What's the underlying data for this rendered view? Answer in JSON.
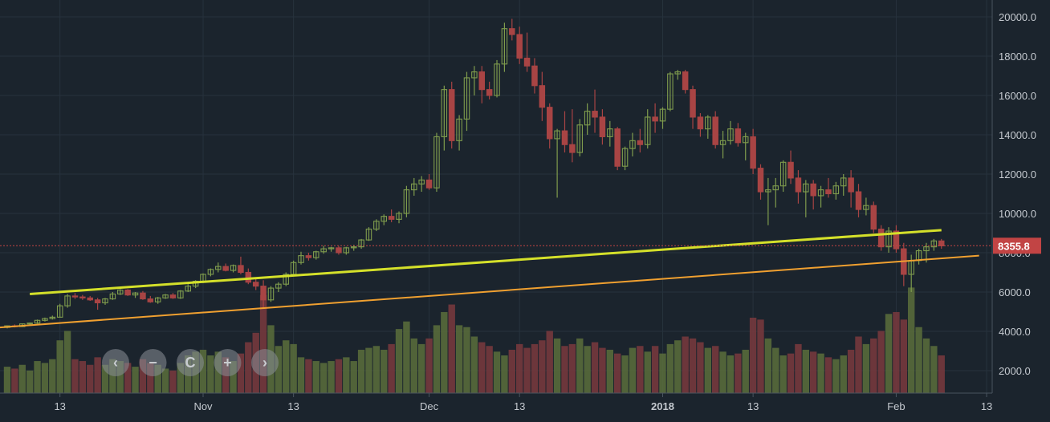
{
  "chart_data": {
    "type": "candlestick",
    "title": "",
    "xlabel": "",
    "ylabel": "",
    "ylim": [
      1000,
      20600
    ],
    "y_ticks": [
      2000,
      4000,
      6000,
      8000,
      10000,
      12000,
      14000,
      16000,
      18000,
      20000
    ],
    "y_tick_labels": [
      "2000.0",
      "4000.0",
      "6000.0",
      "8000.0",
      "10000.0",
      "12000.0",
      "14000.0",
      "16000.0",
      "18000.0",
      "20000.0"
    ],
    "x_ticks": [
      {
        "label": "13",
        "bold": false,
        "i": 7
      },
      {
        "label": "Nov",
        "bold": false,
        "i": 26
      },
      {
        "label": "13",
        "bold": false,
        "i": 38
      },
      {
        "label": "Dec",
        "bold": false,
        "i": 56
      },
      {
        "label": "13",
        "bold": false,
        "i": 68
      },
      {
        "label": "2018",
        "bold": true,
        "i": 87
      },
      {
        "label": "13",
        "bold": false,
        "i": 99
      },
      {
        "label": "Feb",
        "bold": false,
        "i": 118
      },
      {
        "label": "13",
        "bold": false,
        "i": 130
      }
    ],
    "last_price_label": "8355.8",
    "last_price": 8355.8,
    "trendlines": [
      {
        "color": "#d4e02a",
        "points": [
          [
            3,
            5900
          ],
          [
            124,
            9150
          ]
        ]
      },
      {
        "color": "#f0a030",
        "points": [
          [
            -1,
            4200
          ],
          [
            129,
            7850
          ]
        ]
      }
    ],
    "candles": [
      [
        4200,
        4300,
        4150,
        4280,
        1400
      ],
      [
        4280,
        4350,
        4200,
        4240,
        1300
      ],
      [
        4240,
        4400,
        4220,
        4380,
        1500
      ],
      [
        4380,
        4450,
        4300,
        4420,
        1200
      ],
      [
        4420,
        4600,
        4380,
        4560,
        1700
      ],
      [
        4560,
        4700,
        4500,
        4650,
        1600
      ],
      [
        4650,
        4800,
        4600,
        4720,
        1800
      ],
      [
        4720,
        5400,
        4700,
        5300,
        2800
      ],
      [
        5300,
        5900,
        5200,
        5800,
        3300
      ],
      [
        5800,
        5950,
        5650,
        5750,
        1800
      ],
      [
        5750,
        5850,
        5600,
        5700,
        1700
      ],
      [
        5700,
        5800,
        5550,
        5600,
        1500
      ],
      [
        5600,
        5700,
        5100,
        5450,
        1900
      ],
      [
        5450,
        5700,
        5350,
        5650,
        1500
      ],
      [
        5650,
        6000,
        5600,
        5900,
        1800
      ],
      [
        5900,
        6150,
        5850,
        6100,
        1700
      ],
      [
        6100,
        6150,
        5800,
        5850,
        1600
      ],
      [
        5850,
        6000,
        5700,
        5950,
        1400
      ],
      [
        5950,
        6050,
        5600,
        5650,
        1800
      ],
      [
        5650,
        5800,
        5450,
        5500,
        1600
      ],
      [
        5500,
        5750,
        5400,
        5700,
        1500
      ],
      [
        5700,
        5900,
        5650,
        5850,
        1300
      ],
      [
        5850,
        5950,
        5650,
        5700,
        1200
      ],
      [
        5700,
        6100,
        5650,
        6050,
        1600
      ],
      [
        6050,
        6400,
        6000,
        6300,
        2000
      ],
      [
        6300,
        6600,
        6200,
        6550,
        2200
      ],
      [
        6550,
        6950,
        6450,
        6900,
        2300
      ],
      [
        6900,
        7200,
        6800,
        7150,
        2000
      ],
      [
        7150,
        7500,
        7000,
        7300,
        2200
      ],
      [
        7300,
        7450,
        7050,
        7100,
        1900
      ],
      [
        7100,
        7400,
        7000,
        7350,
        1700
      ],
      [
        7350,
        7800,
        6900,
        7000,
        2100
      ],
      [
        7000,
        7200,
        6400,
        6500,
        2700
      ],
      [
        6500,
        6700,
        6100,
        6300,
        3200
      ],
      [
        6300,
        6600,
        5200,
        5600,
        5200
      ],
      [
        5600,
        6300,
        5500,
        6200,
        3600
      ],
      [
        6200,
        6500,
        6000,
        6400,
        2500
      ],
      [
        6400,
        7000,
        6300,
        6900,
        2800
      ],
      [
        6900,
        7600,
        6800,
        7500,
        2600
      ],
      [
        7500,
        8050,
        7400,
        7850,
        1900
      ],
      [
        7850,
        8000,
        7600,
        7750,
        1800
      ],
      [
        7750,
        8100,
        7650,
        8050,
        1700
      ],
      [
        8050,
        8350,
        7950,
        8200,
        1600
      ],
      [
        8200,
        8300,
        8050,
        8250,
        1700
      ],
      [
        8250,
        8350,
        7900,
        8000,
        1800
      ],
      [
        8000,
        8300,
        7900,
        8250,
        1900
      ],
      [
        8250,
        8400,
        8100,
        8300,
        1700
      ],
      [
        8300,
        8700,
        8200,
        8650,
        2300
      ],
      [
        8650,
        9300,
        8600,
        9200,
        2400
      ],
      [
        9200,
        9700,
        9100,
        9600,
        2500
      ],
      [
        9600,
        9950,
        9400,
        9850,
        2300
      ],
      [
        9850,
        10200,
        9550,
        9700,
        2600
      ],
      [
        9700,
        10100,
        9500,
        10000,
        3400
      ],
      [
        10000,
        11400,
        9800,
        11200,
        3800
      ],
      [
        11200,
        11800,
        10900,
        11500,
        2900
      ],
      [
        11500,
        11900,
        11100,
        11700,
        2600
      ],
      [
        11700,
        12000,
        11200,
        11300,
        2900
      ],
      [
        11300,
        14100,
        11100,
        13900,
        3600
      ],
      [
        13900,
        16500,
        13200,
        16300,
        4300
      ],
      [
        16300,
        16700,
        13300,
        13700,
        4700
      ],
      [
        13700,
        15000,
        13200,
        14800,
        3600
      ],
      [
        14800,
        17200,
        14200,
        16900,
        3500
      ],
      [
        16900,
        17500,
        16000,
        17200,
        3000
      ],
      [
        17200,
        17500,
        15600,
        16300,
        2700
      ],
      [
        16300,
        16700,
        15800,
        16000,
        2500
      ],
      [
        16000,
        17800,
        15900,
        17600,
        2200
      ],
      [
        17600,
        19700,
        17200,
        19400,
        2000
      ],
      [
        19400,
        19900,
        18800,
        19100,
        2300
      ],
      [
        19100,
        19500,
        17600,
        17900,
        2600
      ],
      [
        17900,
        19200,
        17200,
        17500,
        2400
      ],
      [
        17500,
        17900,
        16100,
        16500,
        2600
      ],
      [
        16500,
        17200,
        14700,
        15400,
        2800
      ],
      [
        15400,
        15600,
        13300,
        13800,
        3300
      ],
      [
        13800,
        14300,
        10800,
        14200,
        2900
      ],
      [
        14200,
        15200,
        13100,
        13500,
        2500
      ],
      [
        13500,
        15300,
        12600,
        13100,
        2600
      ],
      [
        13100,
        14800,
        12900,
        14500,
        2900
      ],
      [
        14500,
        15600,
        14000,
        15200,
        2500
      ],
      [
        15200,
        16300,
        14100,
        14900,
        2700
      ],
      [
        14900,
        15300,
        13500,
        13900,
        2400
      ],
      [
        13900,
        14700,
        13400,
        14300,
        2300
      ],
      [
        14300,
        14400,
        12200,
        12400,
        2100
      ],
      [
        12400,
        13400,
        12200,
        13300,
        2000
      ],
      [
        13300,
        14100,
        12900,
        13700,
        2400
      ],
      [
        13700,
        14300,
        13100,
        13500,
        2500
      ],
      [
        13500,
        15300,
        13300,
        14900,
        2200
      ],
      [
        14900,
        15600,
        14100,
        14700,
        2500
      ],
      [
        14700,
        15400,
        14300,
        15300,
        2100
      ],
      [
        15300,
        17200,
        15200,
        17100,
        2600
      ],
      [
        17100,
        17300,
        16800,
        17200,
        2800
      ],
      [
        17200,
        17300,
        16100,
        16300,
        3000
      ],
      [
        16300,
        16500,
        14300,
        14900,
        2900
      ],
      [
        14900,
        15100,
        13900,
        14300,
        2700
      ],
      [
        14300,
        15000,
        13800,
        14900,
        2400
      ],
      [
        14900,
        15200,
        13300,
        13500,
        2500
      ],
      [
        13500,
        14200,
        12800,
        13700,
        2200
      ],
      [
        13700,
        14700,
        13500,
        14300,
        2000
      ],
      [
        14300,
        14600,
        13400,
        13600,
        2100
      ],
      [
        13600,
        14100,
        12700,
        13900,
        2300
      ],
      [
        13900,
        14300,
        12000,
        12300,
        4000
      ],
      [
        12300,
        12500,
        10700,
        11100,
        3900
      ],
      [
        11100,
        11800,
        9400,
        11200,
        2900
      ],
      [
        11200,
        11800,
        10300,
        11400,
        2400
      ],
      [
        11400,
        12700,
        11100,
        12600,
        2000
      ],
      [
        12600,
        13200,
        11500,
        11800,
        2100
      ],
      [
        11800,
        12200,
        10500,
        11100,
        2600
      ],
      [
        11100,
        11700,
        9800,
        11500,
        2300
      ],
      [
        11500,
        11700,
        10200,
        10900,
        2200
      ],
      [
        10900,
        11400,
        10300,
        11200,
        2100
      ],
      [
        11200,
        11800,
        10800,
        11000,
        1900
      ],
      [
        11000,
        11600,
        10700,
        11400,
        1800
      ],
      [
        11400,
        12000,
        10900,
        11800,
        2000
      ],
      [
        11800,
        12200,
        10300,
        11100,
        2300
      ],
      [
        11100,
        11500,
        9800,
        10200,
        3000
      ],
      [
        10200,
        10800,
        9900,
        10400,
        2600
      ],
      [
        10400,
        10600,
        9000,
        9200,
        2900
      ],
      [
        9200,
        9400,
        8100,
        8300,
        3300
      ],
      [
        8300,
        9300,
        8000,
        9100,
        4200
      ],
      [
        9100,
        9400,
        8000,
        8200,
        4300
      ],
      [
        8200,
        8500,
        6300,
        6900,
        3900
      ],
      [
        6900,
        7900,
        6000,
        7600,
        5600
      ],
      [
        7600,
        8200,
        7400,
        8100,
        3500
      ],
      [
        8100,
        8500,
        7500,
        8300,
        2900
      ],
      [
        8300,
        8700,
        8100,
        8600,
        2500
      ],
      [
        8600,
        8700,
        8200,
        8350,
        2000
      ]
    ]
  },
  "toolbar": {
    "buttons": [
      {
        "name": "scroll-left-button",
        "icon": "chevron-left-icon",
        "glyph": "‹"
      },
      {
        "name": "zoom-out-button",
        "icon": "minus-icon",
        "glyph": "−"
      },
      {
        "name": "reset-button",
        "icon": "reset-icon",
        "glyph": "C"
      },
      {
        "name": "zoom-in-button",
        "icon": "plus-icon",
        "glyph": "+"
      },
      {
        "name": "scroll-right-button",
        "icon": "chevron-right-icon",
        "glyph": "›"
      }
    ]
  },
  "colors": {
    "background": "#1b242d",
    "grid": "#27323d",
    "up": "#7f9c4d",
    "down": "#a84444",
    "up_vol": "#5b6f3c",
    "down_vol": "#7a3a3e",
    "axis_text": "#c4c9cf",
    "price_label_bg": "#c24444",
    "price_line": "#c24444"
  }
}
